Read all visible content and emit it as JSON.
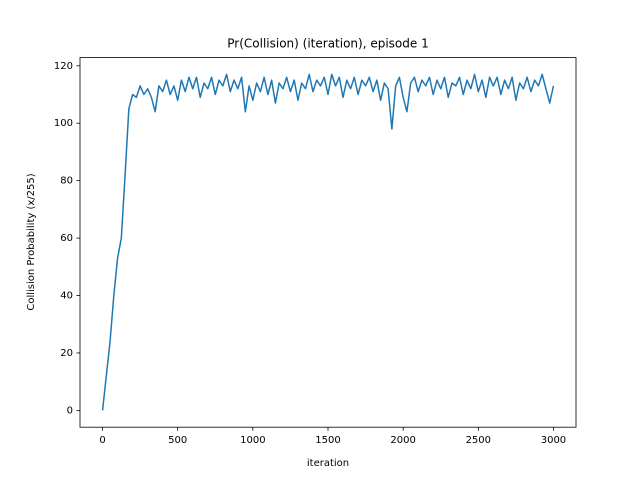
{
  "chart_data": {
    "type": "line",
    "title": "Pr(Collision) (iteration), episode 1",
    "x_label": "iteration",
    "y_label": "Collision Probability (x/255)",
    "x": [
      0,
      25,
      50,
      75,
      100,
      125,
      150,
      175,
      200,
      225,
      250,
      275,
      300,
      325,
      350,
      375,
      400,
      425,
      450,
      475,
      500,
      525,
      550,
      575,
      600,
      625,
      650,
      675,
      700,
      725,
      750,
      775,
      800,
      825,
      850,
      875,
      900,
      925,
      950,
      975,
      1000,
      1025,
      1050,
      1075,
      1100,
      1125,
      1150,
      1175,
      1200,
      1225,
      1250,
      1275,
      1300,
      1325,
      1350,
      1375,
      1400,
      1425,
      1450,
      1475,
      1500,
      1525,
      1550,
      1575,
      1600,
      1625,
      1650,
      1675,
      1700,
      1725,
      1750,
      1775,
      1800,
      1825,
      1850,
      1875,
      1900,
      1925,
      1950,
      1975,
      2000,
      2025,
      2050,
      2075,
      2100,
      2125,
      2150,
      2175,
      2200,
      2225,
      2250,
      2275,
      2300,
      2325,
      2350,
      2375,
      2400,
      2425,
      2450,
      2475,
      2500,
      2525,
      2550,
      2575,
      2600,
      2625,
      2650,
      2675,
      2700,
      2725,
      2750,
      2775,
      2800,
      2825,
      2850,
      2875,
      2900,
      2925,
      2950,
      2975,
      3000
    ],
    "series": [
      {
        "color": "#1f77b4",
        "values": [
          0,
          12,
          24,
          40,
          53,
          60,
          82,
          105,
          110,
          109,
          113,
          110,
          112,
          109,
          104,
          113,
          111,
          115,
          110,
          113,
          108,
          115,
          111,
          116,
          112,
          116,
          109,
          114,
          112,
          116,
          110,
          115,
          113,
          117,
          111,
          115,
          112,
          116,
          104,
          113,
          108,
          114,
          111,
          116,
          110,
          115,
          107,
          114,
          112,
          116,
          111,
          115,
          108,
          114,
          112,
          117,
          111,
          115,
          113,
          116,
          110,
          117,
          113,
          116,
          109,
          115,
          112,
          116,
          110,
          115,
          113,
          116,
          111,
          115,
          108,
          114,
          112,
          98,
          113,
          116,
          109,
          104,
          114,
          116,
          111,
          115,
          113,
          116,
          110,
          115,
          112,
          116,
          109,
          114,
          113,
          116,
          110,
          115,
          112,
          117,
          111,
          115,
          109,
          116,
          113,
          116,
          110,
          115,
          112,
          116,
          108,
          114,
          112,
          116,
          111,
          115,
          113,
          117,
          112,
          107,
          113
        ]
      }
    ],
    "xlim": [
      -150,
      3150
    ],
    "ylim": [
      -5.85,
      122.85
    ],
    "xticks": [
      0,
      500,
      1000,
      1500,
      2000,
      2500,
      3000
    ],
    "yticks": [
      0,
      20,
      40,
      60,
      80,
      100,
      120
    ]
  }
}
